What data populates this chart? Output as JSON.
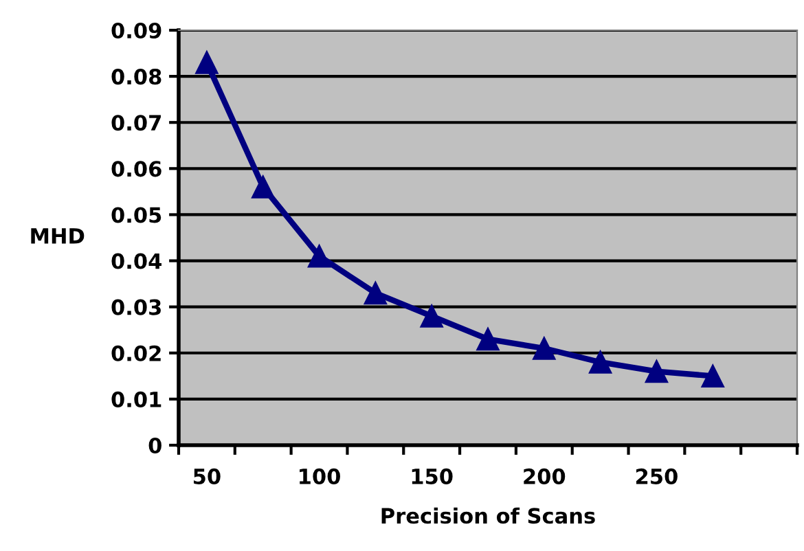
{
  "chart_data": {
    "type": "line",
    "xlabel": "Precision of Scans",
    "ylabel": "MHD",
    "x": [
      50,
      75,
      100,
      125,
      150,
      175,
      200,
      225,
      250,
      275
    ],
    "series": [
      {
        "color": "#000080",
        "values": [
          0.083,
          0.056,
          0.041,
          0.033,
          0.028,
          0.023,
          0.021,
          0.018,
          0.016,
          0.015
        ]
      }
    ],
    "xlim": [
      37.5,
      312.5
    ],
    "xticks": [
      {
        "value": 37.5,
        "label": null
      },
      50,
      {
        "value": 62.5,
        "label": null
      },
      {
        "value": 87.5,
        "label": null
      },
      100,
      {
        "value": 112.5,
        "label": null
      },
      {
        "value": 137.5,
        "label": null
      },
      150,
      {
        "value": 162.5,
        "label": null
      },
      {
        "value": 187.5,
        "label": null
      },
      200,
      {
        "value": 212.5,
        "label": null
      },
      {
        "value": 237.5,
        "label": null
      },
      250,
      {
        "value": 262.5,
        "label": null
      },
      {
        "value": 287.5,
        "label": null
      },
      {
        "value": 312.5,
        "label": null
      }
    ],
    "ylim": [
      0,
      0.09
    ],
    "yticks": [
      0,
      0.01,
      0.02,
      0.03,
      0.04,
      0.05,
      0.06,
      0.07,
      0.08,
      0.09
    ],
    "grid": "y",
    "marker": "triangle",
    "line_style": "solid",
    "legend": false
  }
}
